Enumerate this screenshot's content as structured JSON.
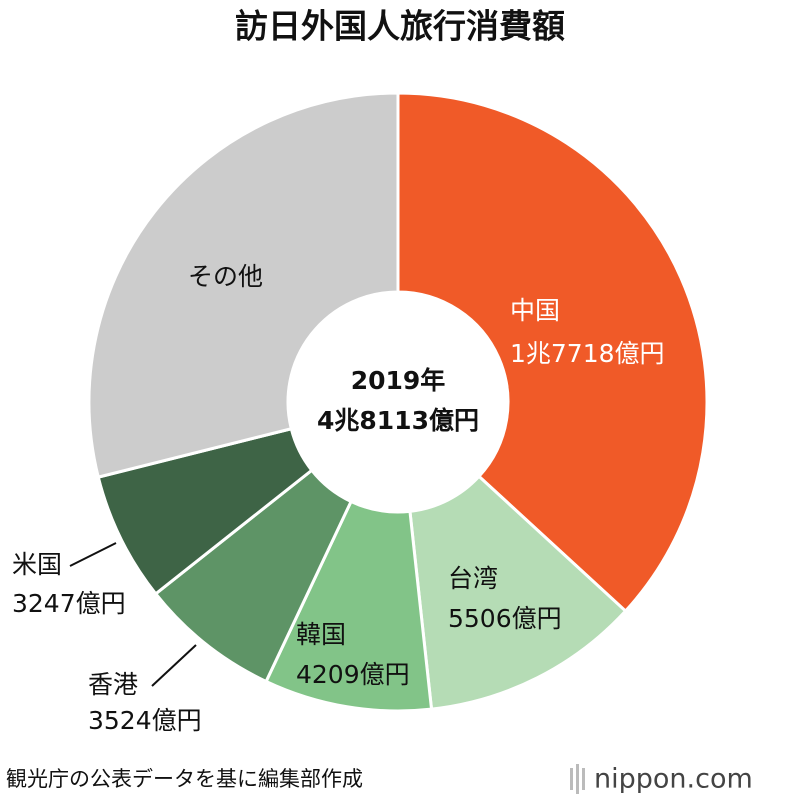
{
  "chart_data": {
    "type": "pie",
    "title": "訪日外国人旅行消費額",
    "categories": [
      "中国",
      "台湾",
      "韓国",
      "香港",
      "米国",
      "その他"
    ],
    "values": [
      17718,
      5506,
      4209,
      3524,
      3247,
      13909
    ],
    "value_labels": [
      "1兆7718億円",
      "5506億円",
      "4209億円",
      "3524億円",
      "3247億円",
      null
    ],
    "colors": [
      "#f05a28",
      "#b5dcb5",
      "#82c488",
      "#5e9466",
      "#3e6446",
      "#cccccc"
    ],
    "center_text": [
      "2019年",
      "4兆8113億円"
    ],
    "source": "観光庁の公表データを基に編集部作成",
    "brand": "nippon.com"
  }
}
